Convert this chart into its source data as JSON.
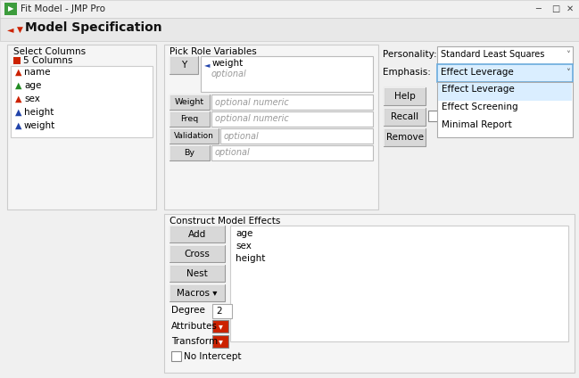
{
  "title": "Fit Model - JMP Pro",
  "bg_color": "#f0f0f0",
  "white": "#ffffff",
  "blue_highlight": "#daeeff",
  "section_title": "Model Specification",
  "select_columns_label": "Select Columns",
  "columns_header": "5 Columns",
  "columns": [
    "name",
    "age",
    "sex",
    "height",
    "weight"
  ],
  "column_colors_red": [
    "#cc2200",
    "#228b22",
    "#cc2200"
  ],
  "pick_role_label": "Pick Role Variables",
  "personality_label": "Personality:",
  "personality_value": "Standard Least Squares",
  "emphasis_label": "Emphasis:",
  "emphasis_value": "Effect Leverage",
  "dropdown_items": [
    "Effect Leverage",
    "Effect Screening",
    "Minimal Report"
  ],
  "construct_label": "Construct Model Effects",
  "model_buttons": [
    "Add",
    "Cross",
    "Nest",
    "Macros ▾"
  ],
  "model_effects": [
    "age",
    "sex",
    "height"
  ],
  "degree_label": "Degree",
  "degree_value": "2",
  "attributes_label": "Attributes",
  "transform_label": "Transform",
  "no_intercept_label": "No Intercept"
}
